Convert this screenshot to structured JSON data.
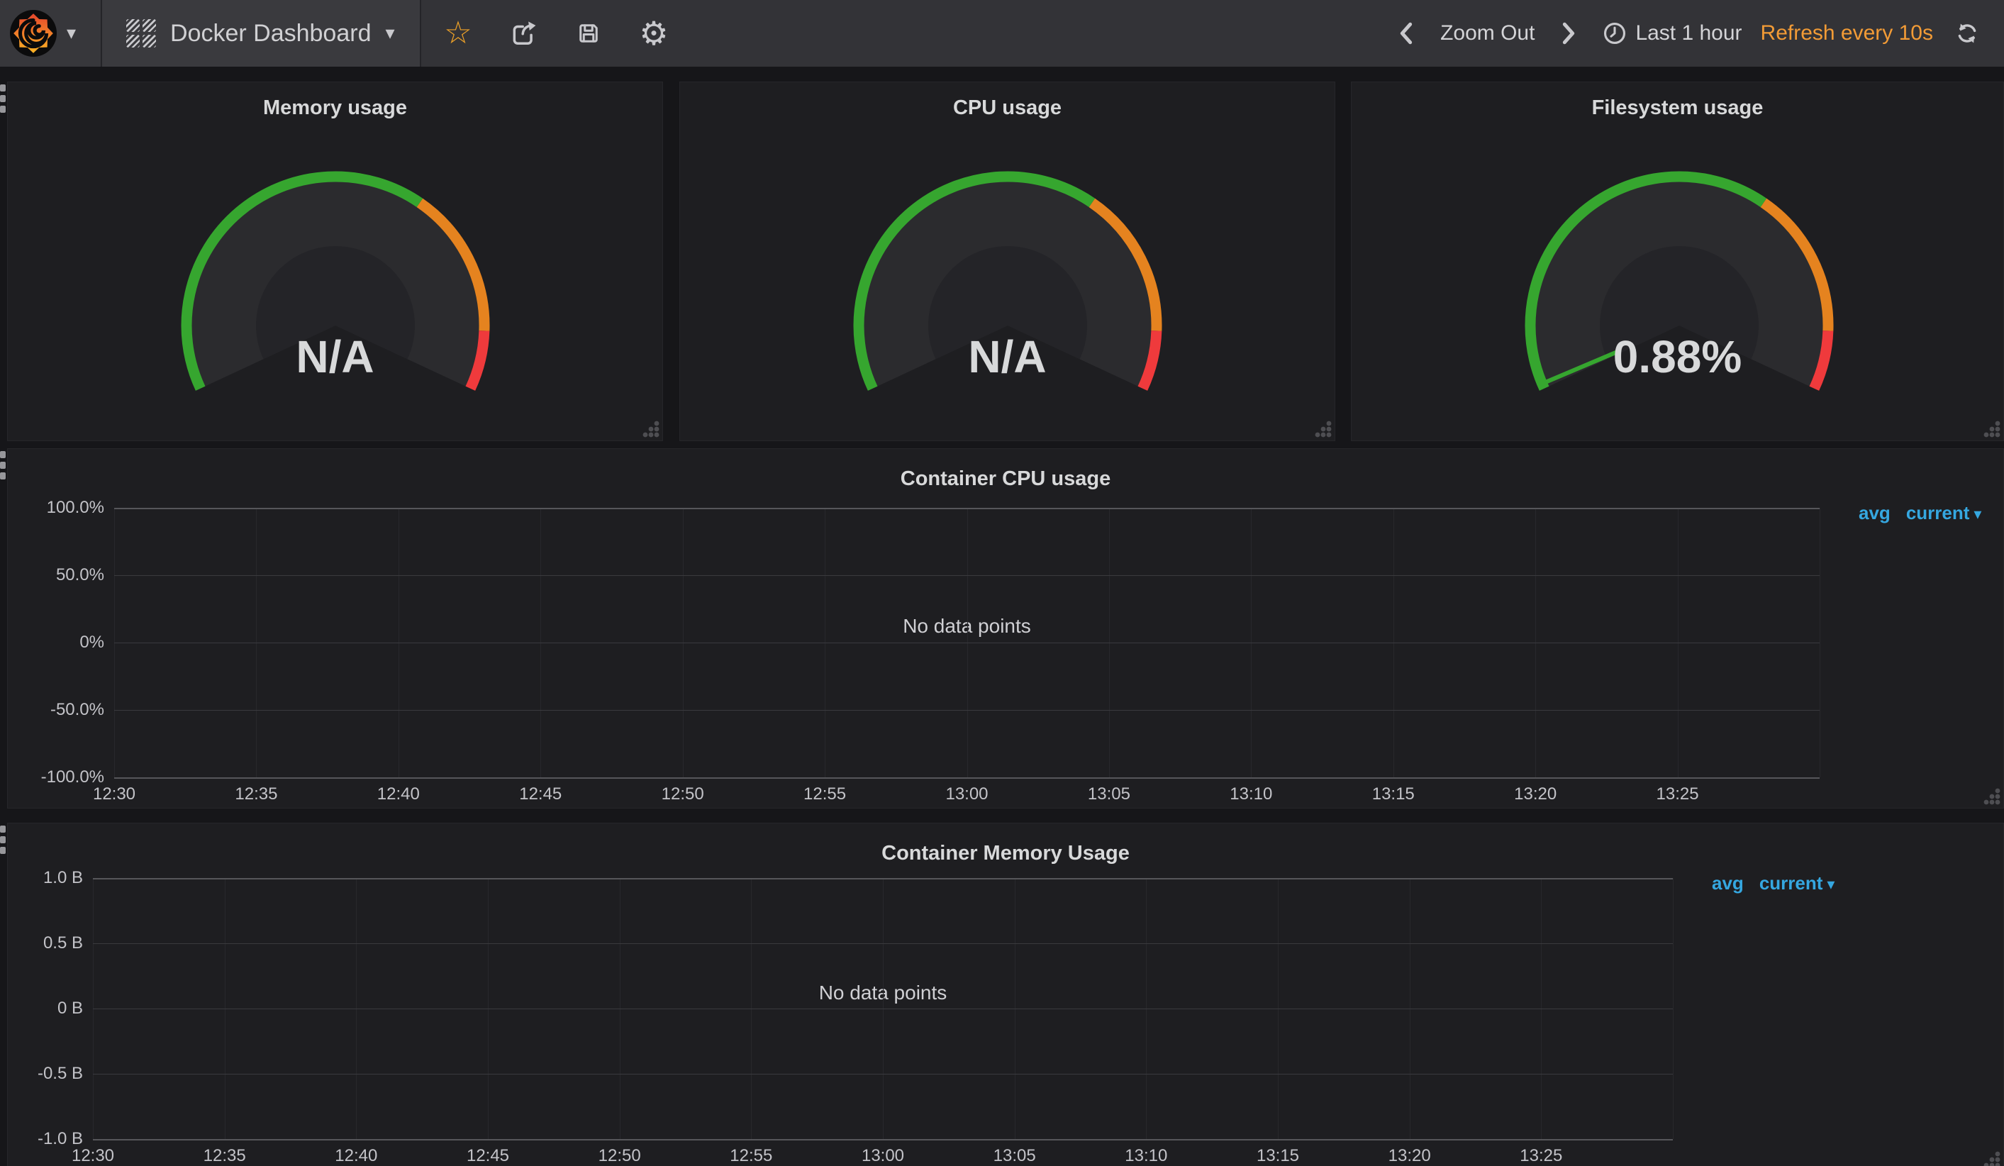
{
  "navbar": {
    "dashboard_title": "Docker Dashboard",
    "zoom_out_label": "Zoom Out",
    "time_range_label": "Last 1 hour",
    "refresh_label": "Refresh every 10s"
  },
  "colors": {
    "page_bg": "#161619",
    "panel_bg": "#1e1e21",
    "navbar_bg": "#333337",
    "accent_orange": "#f29b36",
    "star_orange": "#eda128",
    "legend_blue": "#35a7e0",
    "gauge_green": "#36a62f",
    "gauge_orange": "#e5831f",
    "gauge_red": "#ef3a3c",
    "gauge_face": "#2b2b2e",
    "gauge_inner": "#242428",
    "grid_h": "#3a3a3e",
    "grid_v": "#28282c",
    "plot_border": "#56565a",
    "text": "#d8d9da"
  },
  "panels": {
    "gauges": [
      {
        "title": "Memory usage",
        "value": "N/A",
        "needle_percent": null
      },
      {
        "title": "CPU usage",
        "value": "N/A",
        "needle_percent": null
      },
      {
        "title": "Filesystem usage",
        "value": "0.88%",
        "needle_percent": 0.88
      }
    ],
    "gauge_style": {
      "min": 0,
      "max": 100,
      "thresholds": [
        {
          "until_percent": 65,
          "color": "#36a62f"
        },
        {
          "until_percent": 90,
          "color": "#e5831f"
        },
        {
          "until_percent": 100,
          "color": "#ef3a3c"
        }
      ]
    },
    "cpu_chart": {
      "title": "Container CPU usage",
      "no_data_text": "No data points",
      "y_ticks": [
        "100.0%",
        "50.0%",
        "0%",
        "-50.0%",
        "-100.0%"
      ],
      "x_ticks": [
        "12:30",
        "12:35",
        "12:40",
        "12:45",
        "12:50",
        "12:55",
        "13:00",
        "13:05",
        "13:10",
        "13:15",
        "13:20",
        "13:25"
      ],
      "legend_stats": [
        "avg",
        "current"
      ]
    },
    "memory_chart": {
      "title": "Container Memory Usage",
      "no_data_text": "No data points",
      "y_ticks": [
        "1.0 B",
        "0.5 B",
        "0 B",
        "-0.5 B",
        "-1.0 B"
      ],
      "x_ticks": [
        "12:30",
        "12:35",
        "12:40",
        "12:45",
        "12:50",
        "12:55",
        "13:00",
        "13:05",
        "13:10",
        "13:15",
        "13:20",
        "13:25"
      ],
      "legend_stats": [
        "avg",
        "current"
      ]
    }
  },
  "chart_data": [
    {
      "type": "gauge",
      "title": "Memory usage",
      "display": "N/A",
      "value": null,
      "min": 0,
      "max": 100,
      "thresholds": [
        65,
        90
      ]
    },
    {
      "type": "gauge",
      "title": "CPU usage",
      "display": "N/A",
      "value": null,
      "min": 0,
      "max": 100,
      "thresholds": [
        65,
        90
      ]
    },
    {
      "type": "gauge",
      "title": "Filesystem usage",
      "display": "0.88%",
      "value": 0.88,
      "min": 0,
      "max": 100,
      "thresholds": [
        65,
        90
      ]
    },
    {
      "type": "line",
      "title": "Container CPU usage",
      "series": [],
      "annotation": "No data points",
      "x": [
        "12:30",
        "12:35",
        "12:40",
        "12:45",
        "12:50",
        "12:55",
        "13:00",
        "13:05",
        "13:10",
        "13:15",
        "13:20",
        "13:25"
      ],
      "ylim": [
        -100,
        100
      ],
      "y_unit": "percent",
      "grid": true,
      "legend_position": "right"
    },
    {
      "type": "line",
      "title": "Container Memory Usage",
      "series": [],
      "annotation": "No data points",
      "x": [
        "12:30",
        "12:35",
        "12:40",
        "12:45",
        "12:50",
        "12:55",
        "13:00",
        "13:05",
        "13:10",
        "13:15",
        "13:20",
        "13:25"
      ],
      "ylim": [
        -1,
        1
      ],
      "y_unit": "bytes",
      "grid": true,
      "legend_position": "right"
    }
  ]
}
